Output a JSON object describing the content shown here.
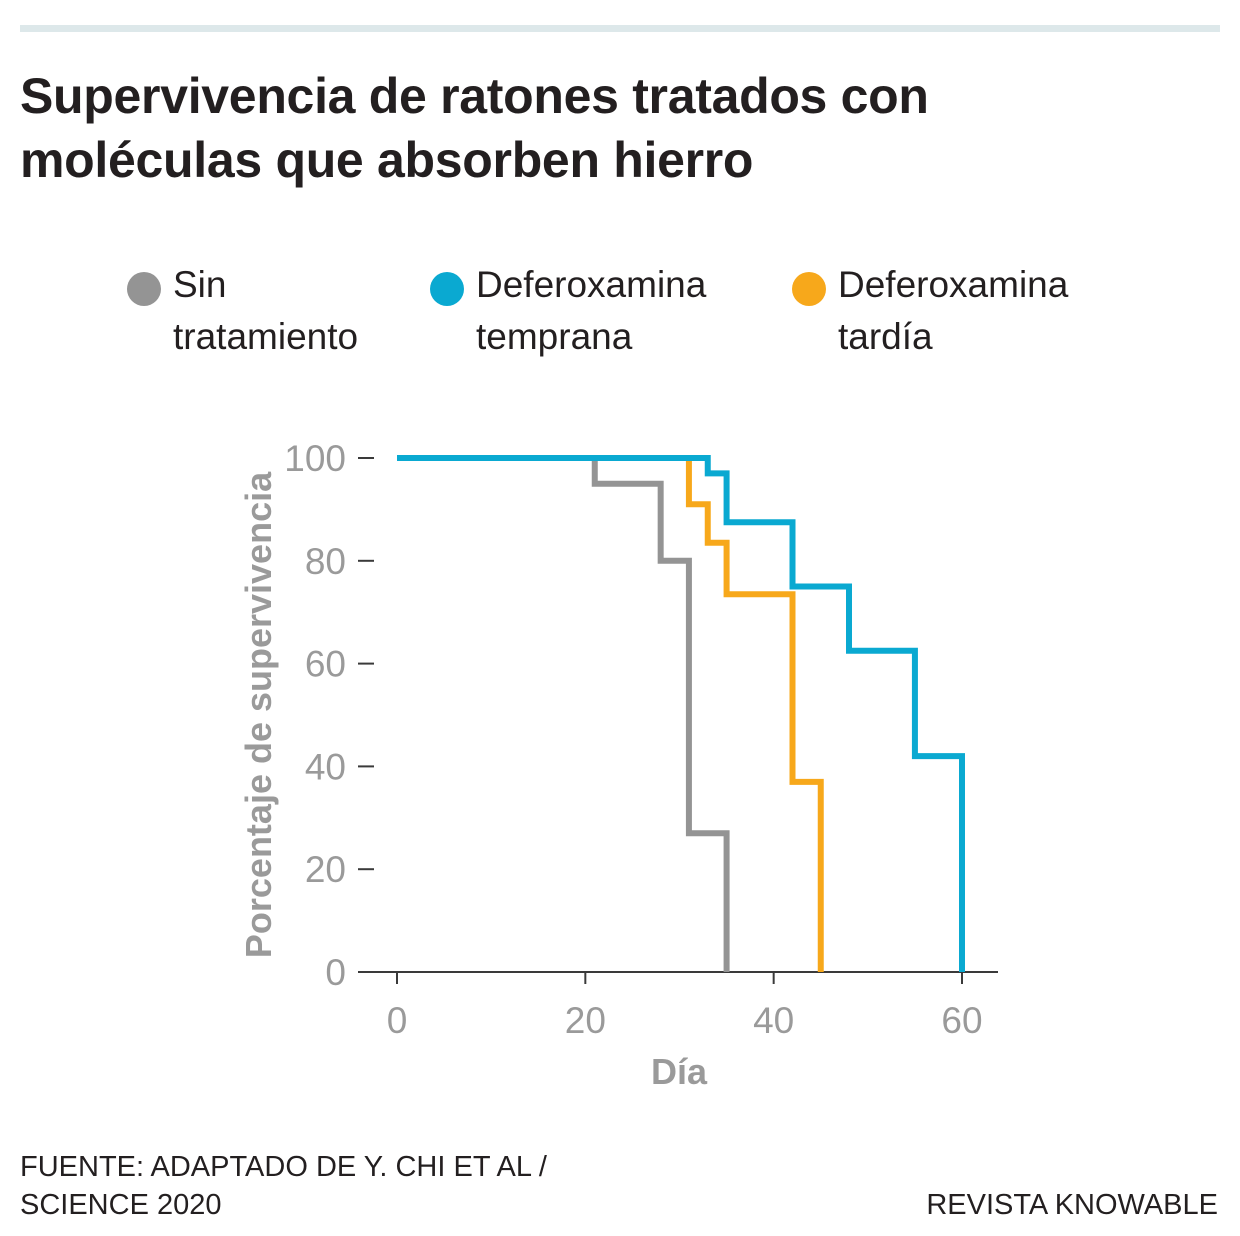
{
  "title_line1": "Supervivencia de ratones tratados con",
  "title_line2": "moléculas que absorben hierro",
  "legend": [
    {
      "line1": "Sin",
      "line2": "tratamiento",
      "color": "#949494"
    },
    {
      "line1": "Deferoxamina",
      "line2": "temprana",
      "color": "#0aa9d1"
    },
    {
      "line1": "Deferoxamina",
      "line2": "tardía",
      "color": "#f7a81b"
    }
  ],
  "chart_data": {
    "type": "line",
    "step": true,
    "xlabel": "Día",
    "ylabel": "Porcentaje de supervivencia",
    "xlim": [
      0,
      64
    ],
    "ylim": [
      0,
      100
    ],
    "xticks": [
      "0",
      "20",
      "40",
      "60"
    ],
    "yticks": [
      "0",
      "20",
      "40",
      "60",
      "80",
      "100"
    ],
    "grid": false,
    "legend_position": "top",
    "series": [
      {
        "name": "Sin tratamiento",
        "color": "#949494",
        "x": [
          0,
          21,
          28,
          31,
          35
        ],
        "y": [
          100,
          95,
          80,
          27,
          0
        ]
      },
      {
        "name": "Deferoxamina temprana",
        "color": "#0aa9d1",
        "x": [
          0,
          33,
          35,
          42,
          48,
          55,
          60
        ],
        "y": [
          100,
          97,
          87.5,
          75,
          62.5,
          42,
          0
        ]
      },
      {
        "name": "Deferoxamina tardía",
        "color": "#f7a81b",
        "x": [
          0,
          31,
          33,
          35,
          42,
          45
        ],
        "y": [
          100,
          91,
          83.5,
          73.5,
          37,
          0
        ]
      }
    ]
  },
  "source_line1": "FUENTE: ADAPTADO DE Y. CHI ET AL /",
  "source_line2": "SCIENCE 2020",
  "credit": "REVISTA KNOWABLE"
}
